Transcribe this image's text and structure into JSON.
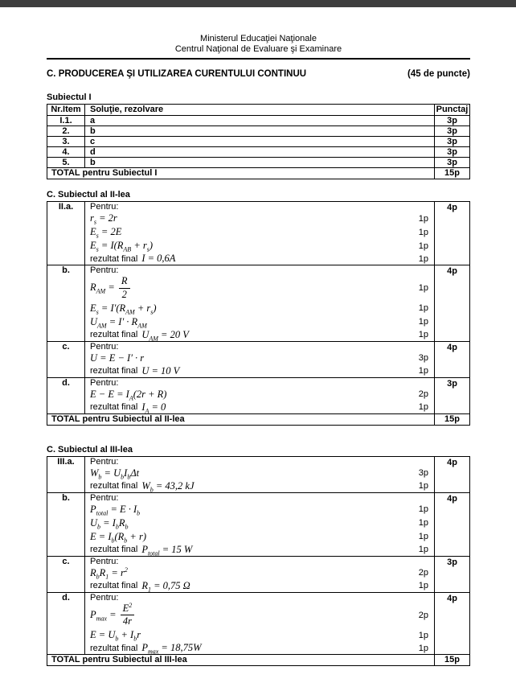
{
  "page": {
    "header_line1": "Ministerul Educaţiei Naţionale",
    "header_line2": "Centrul Naţional de Evaluare şi Examinare",
    "title": "C. PRODUCEREA ŞI UTILIZAREA CURENTULUI CONTINUU",
    "title_points": "(45 de puncte)"
  },
  "subject1": {
    "heading": "Subiectul I",
    "columns": [
      "Nr.Item",
      "Soluţie, rezolvare",
      "Punctaj"
    ],
    "rows": [
      {
        "item": "I.1.",
        "solution": "a",
        "points": "3p"
      },
      {
        "item": "2.",
        "solution": "b",
        "points": "3p"
      },
      {
        "item": "3.",
        "solution": "c",
        "points": "3p"
      },
      {
        "item": "4.",
        "solution": "d",
        "points": "3p"
      },
      {
        "item": "5.",
        "solution": "b",
        "points": "3p"
      }
    ],
    "total_label": "TOTAL pentru Subiectul I",
    "total_points": "15p"
  },
  "subject2": {
    "heading": "C. Subiectul al II-lea",
    "blocks": [
      {
        "item": "II.a.",
        "total": "4p",
        "lines": [
          {
            "prefix": "Pentru:"
          },
          {
            "math": "r_{s} = 2r",
            "points": "1p"
          },
          {
            "math": "E_{s} = 2E",
            "points": "1p"
          },
          {
            "math": "E_{s} = I(R_{AB} + r_{s})",
            "points": "1p"
          },
          {
            "prefix": "rezultat final",
            "math": "I = 0,6A",
            "points": "1p"
          }
        ]
      },
      {
        "item": "b.",
        "total": "4p",
        "lines": [
          {
            "prefix": "Pentru:"
          },
          {
            "math": "R_{AM} = FRAC{R}{2}",
            "points": "1p"
          },
          {
            "math": "E_{s} = I′(R_{AM} + r_{s})",
            "points": "1p"
          },
          {
            "math": "U_{AM} = I′ · R_{AM}",
            "points": "1p"
          },
          {
            "prefix": "rezultat final",
            "math": "U_{AM} = 20 V",
            "points": "1p"
          }
        ]
      },
      {
        "item": "c.",
        "total": "4p",
        "lines": [
          {
            "prefix": "Pentru:"
          },
          {
            "math": "U = E − I′ · r",
            "points": "3p"
          },
          {
            "prefix": "rezultat final",
            "math": "U = 10 V",
            "points": "1p"
          }
        ]
      },
      {
        "item": "d.",
        "total": "3p",
        "lines": [
          {
            "prefix": "Pentru:"
          },
          {
            "math": "E − E = I_{A}(2r + R)",
            "points": "2p"
          },
          {
            "prefix": "rezultat final",
            "math": "I_{A} = 0",
            "points": "1p"
          }
        ]
      }
    ],
    "total_label": "TOTAL pentru Subiectul al II-lea",
    "total_points": "15p"
  },
  "subject3": {
    "heading": "C. Subiectul al III-lea",
    "blocks": [
      {
        "item": "III.a.",
        "total": "4p",
        "lines": [
          {
            "prefix": "Pentru:"
          },
          {
            "math": "W_{b} = U_{b}I_{b}Δt",
            "points": "3p"
          },
          {
            "prefix": "rezultat final",
            "math": "W_{b} = 43,2 kJ",
            "points": "1p"
          }
        ]
      },
      {
        "item": "b.",
        "total": "4p",
        "lines": [
          {
            "prefix": "Pentru:"
          },
          {
            "math": "P_{total} = E · I_{b}",
            "points": "1p"
          },
          {
            "math": "U_{b} = I_{b}R_{b}",
            "points": "1p"
          },
          {
            "math": "E = I_{b}(R_{b} + r)",
            "points": "1p"
          },
          {
            "prefix": "rezultat final",
            "math": "P_{total} = 15 W",
            "points": "1p"
          }
        ]
      },
      {
        "item": "c.",
        "total": "3p",
        "lines": [
          {
            "prefix": "Pentru:"
          },
          {
            "math": "R_{b}R_{1} = r^{2}",
            "points": "2p"
          },
          {
            "prefix": "rezultat final",
            "math": "R_{1} = 0,75 Ω",
            "points": "1p"
          }
        ]
      },
      {
        "item": "d.",
        "total": "4p",
        "lines": [
          {
            "prefix": "Pentru:"
          },
          {
            "math": "P_{max} = FRAC{E^{2}}{4r}",
            "points": "2p"
          },
          {
            "math": "E = U_{b} + I_{b}r",
            "points": "1p"
          },
          {
            "prefix": "rezultat final",
            "math": "P_{max} = 18,75W",
            "points": "1p"
          }
        ]
      }
    ],
    "total_label": "TOTAL pentru Subiectul al III-lea",
    "total_points": "15p"
  }
}
